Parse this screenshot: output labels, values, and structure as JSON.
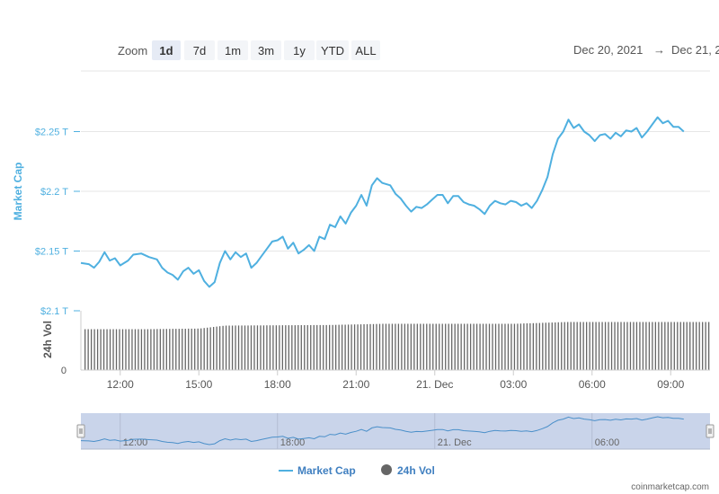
{
  "zoom": {
    "label": "Zoom",
    "buttons": [
      "1d",
      "7d",
      "1m",
      "3m",
      "1y",
      "YTD",
      "ALL"
    ],
    "active": "1d"
  },
  "range": {
    "from": "Dec 20, 2021",
    "arrow": "→",
    "to": "Dec 21, 2"
  },
  "colors": {
    "market_cap": "#4fb0e0",
    "volume": "#666666",
    "navigator_fill": "#c9d4ea",
    "grid": "#e6e6e6"
  },
  "icons": {
    "legend_volume": "filled-circle",
    "navigator_handle": "grip-handle"
  },
  "chart_data": {
    "type": "line",
    "x_unit": "hour (Dec 20 10:30 → Dec 21 10:30)",
    "x_ticks": [
      {
        "x": 12,
        "label": "12:00"
      },
      {
        "x": 15,
        "label": "15:00"
      },
      {
        "x": 18,
        "label": "18:00"
      },
      {
        "x": 21,
        "label": "21:00"
      },
      {
        "x": 24,
        "label": "21. Dec"
      },
      {
        "x": 27,
        "label": "03:00"
      },
      {
        "x": 30,
        "label": "06:00"
      },
      {
        "x": 33,
        "label": "09:00"
      }
    ],
    "xlim": [
      10.5,
      34.5
    ],
    "series": [
      {
        "name": "Market Cap",
        "axis": "market_cap",
        "unit": "T USD",
        "points": [
          [
            10.5,
            2.14
          ],
          [
            10.8,
            2.139
          ],
          [
            11.0,
            2.136
          ],
          [
            11.2,
            2.141
          ],
          [
            11.4,
            2.149
          ],
          [
            11.6,
            2.142
          ],
          [
            11.8,
            2.144
          ],
          [
            12.0,
            2.138
          ],
          [
            12.3,
            2.142
          ],
          [
            12.5,
            2.147
          ],
          [
            12.8,
            2.148
          ],
          [
            13.1,
            2.145
          ],
          [
            13.4,
            2.143
          ],
          [
            13.6,
            2.136
          ],
          [
            13.8,
            2.132
          ],
          [
            14.0,
            2.13
          ],
          [
            14.2,
            2.126
          ],
          [
            14.4,
            2.133
          ],
          [
            14.6,
            2.136
          ],
          [
            14.8,
            2.131
          ],
          [
            15.0,
            2.134
          ],
          [
            15.2,
            2.125
          ],
          [
            15.4,
            2.12
          ],
          [
            15.6,
            2.124
          ],
          [
            15.8,
            2.14
          ],
          [
            16.0,
            2.15
          ],
          [
            16.2,
            2.143
          ],
          [
            16.4,
            2.149
          ],
          [
            16.6,
            2.145
          ],
          [
            16.8,
            2.148
          ],
          [
            17.0,
            2.136
          ],
          [
            17.2,
            2.14
          ],
          [
            17.4,
            2.146
          ],
          [
            17.6,
            2.152
          ],
          [
            17.8,
            2.158
          ],
          [
            18.0,
            2.159
          ],
          [
            18.2,
            2.162
          ],
          [
            18.4,
            2.152
          ],
          [
            18.6,
            2.157
          ],
          [
            18.8,
            2.148
          ],
          [
            19.0,
            2.151
          ],
          [
            19.2,
            2.155
          ],
          [
            19.4,
            2.15
          ],
          [
            19.6,
            2.162
          ],
          [
            19.8,
            2.16
          ],
          [
            20.0,
            2.172
          ],
          [
            20.2,
            2.17
          ],
          [
            20.4,
            2.179
          ],
          [
            20.6,
            2.173
          ],
          [
            20.8,
            2.182
          ],
          [
            21.0,
            2.188
          ],
          [
            21.2,
            2.197
          ],
          [
            21.4,
            2.188
          ],
          [
            21.6,
            2.205
          ],
          [
            21.8,
            2.211
          ],
          [
            22.0,
            2.207
          ],
          [
            22.3,
            2.205
          ],
          [
            22.5,
            2.198
          ],
          [
            22.7,
            2.194
          ],
          [
            22.9,
            2.188
          ],
          [
            23.1,
            2.183
          ],
          [
            23.3,
            2.187
          ],
          [
            23.5,
            2.186
          ],
          [
            23.7,
            2.189
          ],
          [
            23.9,
            2.193
          ],
          [
            24.1,
            2.197
          ],
          [
            24.3,
            2.197
          ],
          [
            24.5,
            2.19
          ],
          [
            24.7,
            2.196
          ],
          [
            24.9,
            2.196
          ],
          [
            25.1,
            2.191
          ],
          [
            25.3,
            2.189
          ],
          [
            25.5,
            2.188
          ],
          [
            25.7,
            2.185
          ],
          [
            25.9,
            2.181
          ],
          [
            26.1,
            2.188
          ],
          [
            26.3,
            2.192
          ],
          [
            26.5,
            2.19
          ],
          [
            26.7,
            2.189
          ],
          [
            26.9,
            2.192
          ],
          [
            27.1,
            2.191
          ],
          [
            27.3,
            2.188
          ],
          [
            27.5,
            2.19
          ],
          [
            27.7,
            2.186
          ],
          [
            27.9,
            2.192
          ],
          [
            28.1,
            2.201
          ],
          [
            28.3,
            2.212
          ],
          [
            28.5,
            2.231
          ],
          [
            28.7,
            2.244
          ],
          [
            28.9,
            2.25
          ],
          [
            29.1,
            2.26
          ],
          [
            29.3,
            2.253
          ],
          [
            29.5,
            2.256
          ],
          [
            29.7,
            2.25
          ],
          [
            29.9,
            2.247
          ],
          [
            30.1,
            2.242
          ],
          [
            30.3,
            2.247
          ],
          [
            30.5,
            2.248
          ],
          [
            30.7,
            2.244
          ],
          [
            30.9,
            2.249
          ],
          [
            31.1,
            2.246
          ],
          [
            31.3,
            2.251
          ],
          [
            31.5,
            2.25
          ],
          [
            31.7,
            2.253
          ],
          [
            31.9,
            2.245
          ],
          [
            32.1,
            2.25
          ],
          [
            32.3,
            2.256
          ],
          [
            32.5,
            2.262
          ],
          [
            32.7,
            2.257
          ],
          [
            32.9,
            2.259
          ],
          [
            33.1,
            2.254
          ],
          [
            33.3,
            2.254
          ],
          [
            33.5,
            2.25
          ]
        ]
      },
      {
        "name": "24h Vol",
        "axis": "volume",
        "type": "bar",
        "bar_count": 200,
        "level_by_hour": [
          [
            10.5,
            0.69
          ],
          [
            13.0,
            0.69
          ],
          [
            15.0,
            0.7
          ],
          [
            16.0,
            0.75
          ],
          [
            20.0,
            0.76
          ],
          [
            22.0,
            0.78
          ],
          [
            27.0,
            0.78
          ],
          [
            29.0,
            0.81
          ],
          [
            34.5,
            0.81
          ]
        ]
      }
    ],
    "y_axes": {
      "market_cap": {
        "title": "Market Cap",
        "ticks": [
          {
            "value": 2.25,
            "label": "$2.25 T"
          },
          {
            "value": 2.2,
            "label": "$2.2 T"
          },
          {
            "value": 2.15,
            "label": "$2.15 T"
          },
          {
            "value": 2.1,
            "label": "$2.1 T"
          }
        ],
        "ylim": [
          2.1,
          2.3
        ]
      },
      "volume": {
        "title": "24h Vol",
        "ticks": [
          {
            "value": 0,
            "label": "0"
          }
        ],
        "ylim": [
          0,
          1
        ]
      }
    },
    "navigator": {
      "ticks": [
        {
          "x": 12,
          "label": "12:00"
        },
        {
          "x": 18,
          "label": "18:00"
        },
        {
          "x": 24,
          "label": "21. Dec"
        },
        {
          "x": 30,
          "label": "06:00"
        }
      ]
    },
    "legend": [
      {
        "name": "Market Cap",
        "symbol": "line"
      },
      {
        "name": "24h Vol",
        "symbol": "circle"
      }
    ],
    "grid": true,
    "legend_position": "bottom-center"
  },
  "credit": "coinmarketcap.com"
}
